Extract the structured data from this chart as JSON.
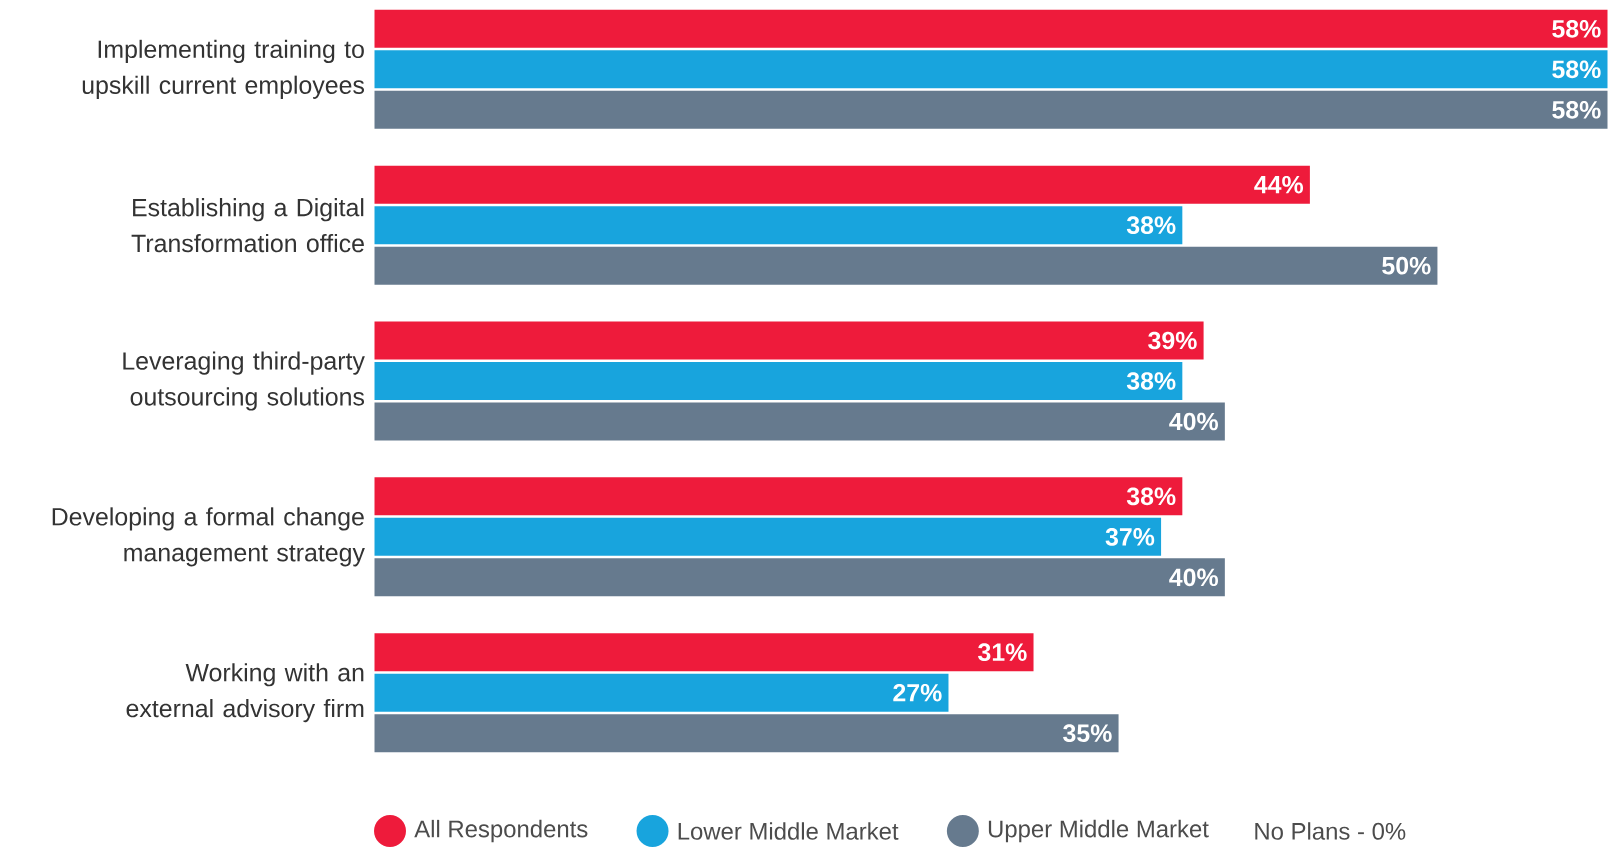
{
  "chart_data": {
    "type": "bar",
    "orientation": "horizontal",
    "categories": [
      "Implementing training to upskill current employees",
      "Establishing a Digital Transformation office",
      "Leveraging third-party outsourcing solutions",
      "Developing a formal change management strategy",
      "Working with an external advisory firm"
    ],
    "series": [
      {
        "name": "All Respondents",
        "color": "#ee1b3b",
        "values": [
          58,
          44,
          39,
          38,
          31
        ],
        "value_labels": [
          "58%",
          "44%",
          "39%",
          "38%",
          "31%"
        ]
      },
      {
        "name": "Lower Middle Market",
        "color": "#18a4dd",
        "values": [
          58,
          38,
          38,
          37,
          27
        ],
        "value_labels": [
          "58%",
          "38%",
          "38%",
          "37%",
          "27%"
        ]
      },
      {
        "name": "Upper Middle Market",
        "color": "#667a8e",
        "values": [
          58,
          50,
          40,
          40,
          35
        ],
        "value_labels": [
          "58%",
          "50%",
          "40%",
          "40%",
          "35%"
        ]
      }
    ],
    "xlim": [
      0,
      58
    ],
    "tick_labels": "y",
    "legend": "bottom",
    "annotations": [
      "No Plans - 0%"
    ]
  }
}
